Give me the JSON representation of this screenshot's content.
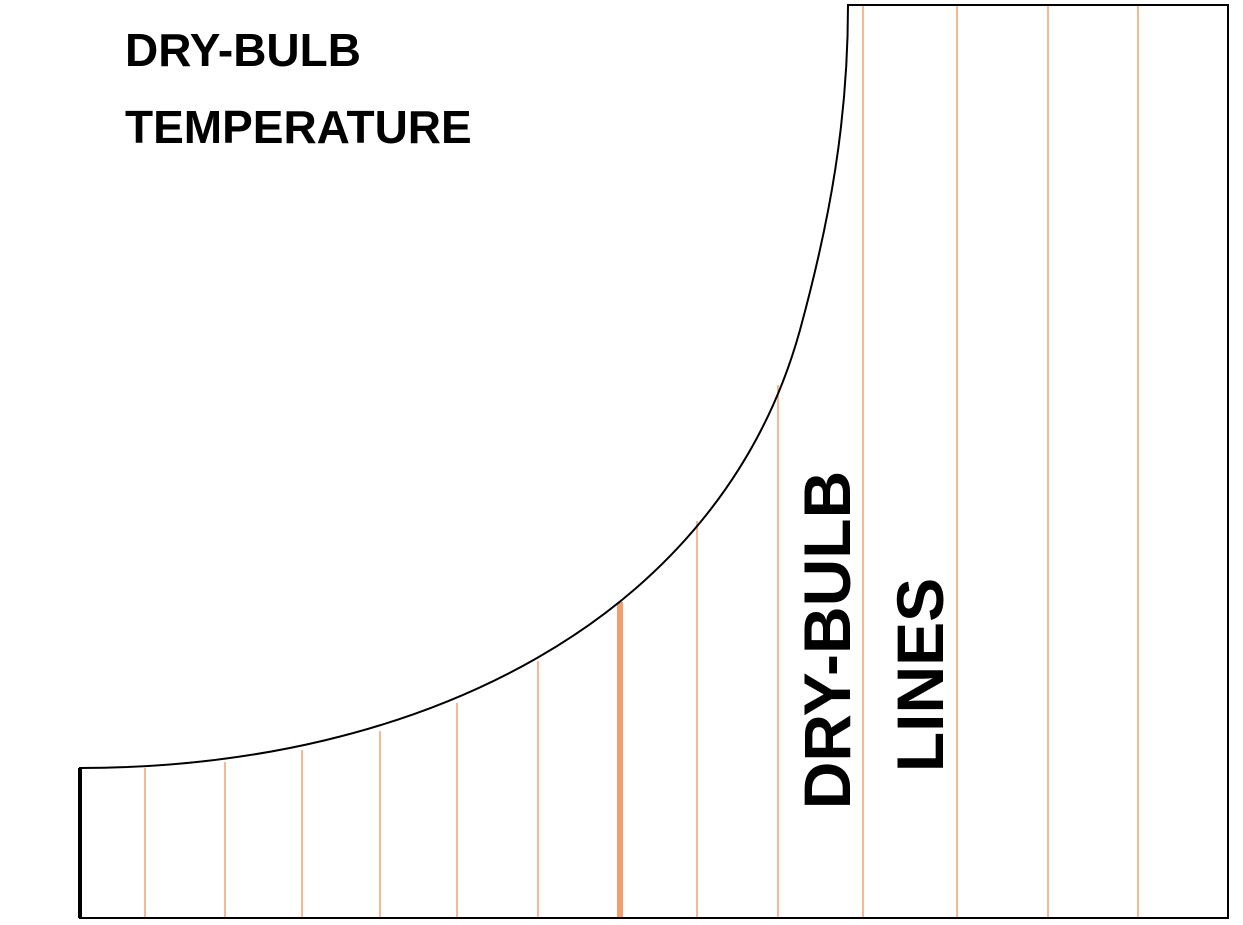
{
  "title": [
    "DRY-BULB",
    "TEMPERATURE"
  ],
  "label": [
    "DRY-BULB",
    "LINES"
  ]
}
